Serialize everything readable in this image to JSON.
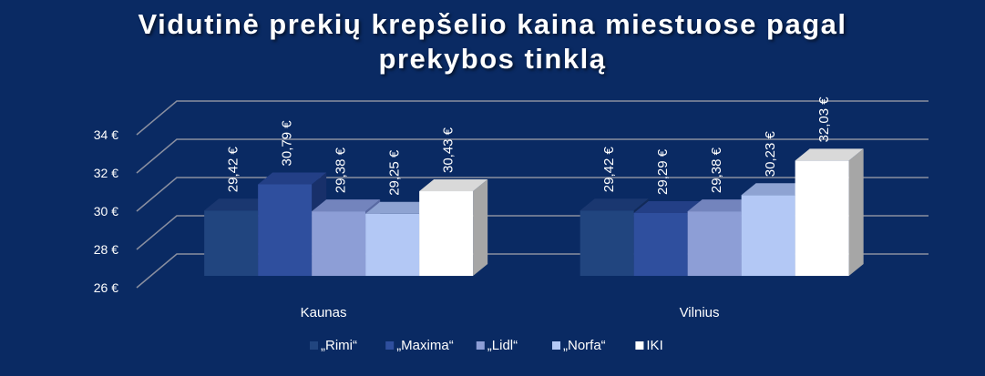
{
  "chart_data": {
    "type": "bar",
    "title_lines": [
      "Vidutinė prekių krepšelio kaina miestuose pagal",
      "prekybos tinklą"
    ],
    "categories": [
      "Kaunas",
      "Vilnius"
    ],
    "series": [
      {
        "name": "„Rimi“",
        "values": [
          29.42,
          29.42
        ],
        "labels": [
          "29,42 €",
          "29,42 €"
        ],
        "color": "#21457f",
        "top": "#1a3770",
        "side": "#122a58"
      },
      {
        "name": "„Maxima“",
        "values": [
          30.79,
          29.29
        ],
        "labels": [
          "30,79 €",
          "29,29 €"
        ],
        "color": "#2f4f9e",
        "top": "#233f86",
        "side": "#18306a"
      },
      {
        "name": "„Lidl“",
        "values": [
          29.38,
          29.38
        ],
        "labels": [
          "29,38 €",
          "29,38 €"
        ],
        "color": "#8d9ed6",
        "top": "#7384bd",
        "side": "#5a6aa3"
      },
      {
        "name": "„Norfa“",
        "values": [
          29.25,
          30.23
        ],
        "labels": [
          "29,25 €",
          "30,23 €"
        ],
        "color": "#b3c8f5",
        "top": "#8ea3d2",
        "side": "#7585b4"
      },
      {
        "name": "IKI",
        "values": [
          30.43,
          32.03
        ],
        "labels": [
          "30,43 €",
          "32,03 €"
        ],
        "color": "#ffffff",
        "top": "#d9d9d9",
        "side": "#a6a6a6"
      }
    ],
    "ylim": [
      26,
      34
    ],
    "yticks": [
      26,
      28,
      30,
      32,
      34
    ],
    "ytick_labels": [
      "26 €",
      "28 €",
      "30 €",
      "32 €",
      "34 €"
    ],
    "grid": true,
    "three_d": true,
    "legend_position": "bottom",
    "colors": {
      "background": "#0a2a63",
      "grid": "#8a8fa0",
      "text": "#ffffff"
    }
  }
}
